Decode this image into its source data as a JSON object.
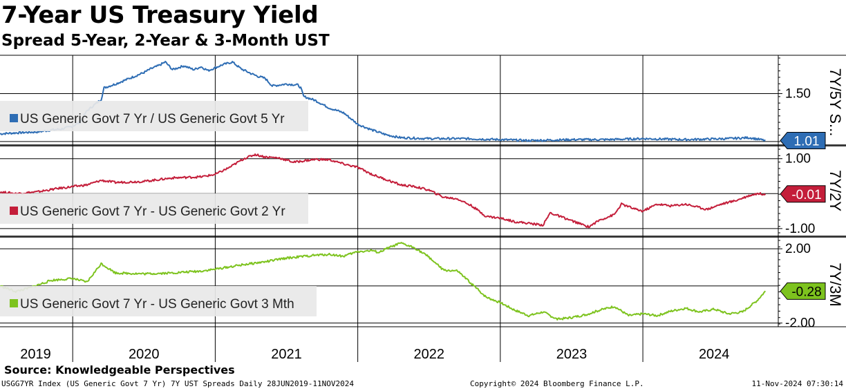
{
  "header": {
    "title": "7-Year US Treasury Yield",
    "subtitle": "Spread 5-Year, 2-Year & 3-Month UST"
  },
  "footer": {
    "source": "Source: Knowledgeable Perspectives",
    "ticker_info": "USGG7YR Index (US Generic Govt 7 Yr) 7Y UST Spreads  Daily 28JUN2019-11NOV2024",
    "copyright": "Copyright© 2024 Bloomberg Finance L.P.",
    "timestamp": "11-Nov-2024 07:30:14"
  },
  "chart_data": {
    "type": "line",
    "x_labels": [
      "2019",
      "2020",
      "2021",
      "2022",
      "2023",
      "2024"
    ],
    "x_range": [
      "2019-06-28",
      "2024-11-11"
    ],
    "panels": [
      {
        "name": "7Y/5Y Spread",
        "axis_title": "7Y/5Y S...",
        "legend": "US Generic Govt 7 Yr / US Generic Govt 5 Yr",
        "color": "#2e6db4",
        "last_value_label": "1.01",
        "yticks": [
          1.5
        ],
        "ytick_labels": [
          "1.50"
        ],
        "ylim": [
          0.97,
          1.9
        ],
        "points": [
          [
            2019.49,
            1.08
          ],
          [
            2019.6,
            1.09
          ],
          [
            2019.75,
            1.1
          ],
          [
            2019.85,
            1.12
          ],
          [
            2019.92,
            1.13
          ],
          [
            2020.0,
            1.16
          ],
          [
            2020.05,
            1.2
          ],
          [
            2020.1,
            1.32
          ],
          [
            2020.15,
            1.38
          ],
          [
            2020.2,
            1.44
          ],
          [
            2020.22,
            1.56
          ],
          [
            2020.3,
            1.6
          ],
          [
            2020.4,
            1.66
          ],
          [
            2020.5,
            1.72
          ],
          [
            2020.55,
            1.76
          ],
          [
            2020.6,
            1.79
          ],
          [
            2020.65,
            1.83
          ],
          [
            2020.7,
            1.75
          ],
          [
            2020.78,
            1.79
          ],
          [
            2020.85,
            1.75
          ],
          [
            2020.9,
            1.78
          ],
          [
            2020.95,
            1.74
          ],
          [
            2021.0,
            1.77
          ],
          [
            2021.05,
            1.8
          ],
          [
            2021.12,
            1.83
          ],
          [
            2021.18,
            1.76
          ],
          [
            2021.25,
            1.71
          ],
          [
            2021.3,
            1.68
          ],
          [
            2021.35,
            1.66
          ],
          [
            2021.4,
            1.58
          ],
          [
            2021.5,
            1.6
          ],
          [
            2021.58,
            1.59
          ],
          [
            2021.6,
            1.56
          ],
          [
            2021.62,
            1.47
          ],
          [
            2021.7,
            1.43
          ],
          [
            2021.8,
            1.35
          ],
          [
            2021.9,
            1.3
          ],
          [
            2022.0,
            1.18
          ],
          [
            2022.1,
            1.12
          ],
          [
            2022.2,
            1.07
          ],
          [
            2022.3,
            1.04
          ],
          [
            2022.5,
            1.03
          ],
          [
            2022.75,
            1.03
          ],
          [
            2023.0,
            1.02
          ],
          [
            2023.2,
            1.01
          ],
          [
            2023.5,
            1.02
          ],
          [
            2023.75,
            1.02
          ],
          [
            2024.0,
            1.03
          ],
          [
            2024.3,
            1.02
          ],
          [
            2024.6,
            1.03
          ],
          [
            2024.75,
            1.04
          ],
          [
            2024.86,
            1.01
          ]
        ]
      },
      {
        "name": "7Y/2Y Spread",
        "axis_title": "7Y/2Y",
        "legend": "US Generic Govt 7 Yr - US Generic Govt 2 Yr",
        "color": "#c41e3a",
        "last_value_label": "-0.01",
        "yticks": [
          1.0,
          -1.0
        ],
        "ytick_labels": [
          "1.00",
          "-1.00"
        ],
        "ylim": [
          -1.2,
          1.35
        ],
        "points": [
          [
            2019.49,
            0.05
          ],
          [
            2019.6,
            0.0
          ],
          [
            2019.75,
            0.05
          ],
          [
            2019.9,
            0.15
          ],
          [
            2020.0,
            0.2
          ],
          [
            2020.1,
            0.25
          ],
          [
            2020.2,
            0.38
          ],
          [
            2020.3,
            0.32
          ],
          [
            2020.5,
            0.35
          ],
          [
            2020.7,
            0.45
          ],
          [
            2020.9,
            0.48
          ],
          [
            2021.0,
            0.55
          ],
          [
            2021.1,
            0.75
          ],
          [
            2021.2,
            1.0
          ],
          [
            2021.28,
            1.12
          ],
          [
            2021.35,
            1.05
          ],
          [
            2021.45,
            1.02
          ],
          [
            2021.55,
            0.9
          ],
          [
            2021.7,
            0.98
          ],
          [
            2021.8,
            0.97
          ],
          [
            2021.9,
            0.85
          ],
          [
            2022.0,
            0.75
          ],
          [
            2022.1,
            0.55
          ],
          [
            2022.2,
            0.4
          ],
          [
            2022.3,
            0.25
          ],
          [
            2022.4,
            0.2
          ],
          [
            2022.5,
            0.1
          ],
          [
            2022.6,
            -0.1
          ],
          [
            2022.7,
            -0.15
          ],
          [
            2022.8,
            -0.35
          ],
          [
            2022.9,
            -0.65
          ],
          [
            2023.0,
            -0.7
          ],
          [
            2023.1,
            -0.8
          ],
          [
            2023.2,
            -0.85
          ],
          [
            2023.3,
            -0.9
          ],
          [
            2023.35,
            -0.55
          ],
          [
            2023.45,
            -0.7
          ],
          [
            2023.55,
            -0.85
          ],
          [
            2023.62,
            -0.95
          ],
          [
            2023.7,
            -0.75
          ],
          [
            2023.8,
            -0.6
          ],
          [
            2023.85,
            -0.3
          ],
          [
            2023.95,
            -0.45
          ],
          [
            2024.0,
            -0.5
          ],
          [
            2024.1,
            -0.3
          ],
          [
            2024.2,
            -0.35
          ],
          [
            2024.3,
            -0.3
          ],
          [
            2024.45,
            -0.45
          ],
          [
            2024.55,
            -0.3
          ],
          [
            2024.65,
            -0.2
          ],
          [
            2024.75,
            -0.05
          ],
          [
            2024.8,
            0.0
          ],
          [
            2024.86,
            -0.01
          ]
        ]
      },
      {
        "name": "7Y/3M Spread",
        "axis_title": "7Y/3M",
        "legend": "US Generic Govt 7 Yr - US Generic Govt 3 Mth",
        "color": "#7dc31e",
        "last_value_label": "-0.28",
        "yticks": [
          2.0,
          -2.0
        ],
        "ytick_labels": [
          "2.00",
          "-2.00"
        ],
        "ylim": [
          -2.2,
          2.6
        ],
        "points": [
          [
            2019.49,
            0.0
          ],
          [
            2019.6,
            -0.3
          ],
          [
            2019.7,
            -0.1
          ],
          [
            2019.85,
            0.3
          ],
          [
            2020.0,
            0.4
          ],
          [
            2020.1,
            0.2
          ],
          [
            2020.2,
            1.2
          ],
          [
            2020.3,
            0.7
          ],
          [
            2020.5,
            0.65
          ],
          [
            2020.7,
            0.7
          ],
          [
            2020.9,
            0.8
          ],
          [
            2021.0,
            0.9
          ],
          [
            2021.2,
            1.15
          ],
          [
            2021.35,
            1.3
          ],
          [
            2021.5,
            1.5
          ],
          [
            2021.7,
            1.65
          ],
          [
            2021.8,
            1.7
          ],
          [
            2021.9,
            1.6
          ],
          [
            2022.0,
            1.85
          ],
          [
            2022.1,
            1.9
          ],
          [
            2022.15,
            1.8
          ],
          [
            2022.2,
            2.0
          ],
          [
            2022.3,
            2.3
          ],
          [
            2022.4,
            2.05
          ],
          [
            2022.5,
            1.55
          ],
          [
            2022.6,
            0.85
          ],
          [
            2022.7,
            0.8
          ],
          [
            2022.8,
            0.1
          ],
          [
            2022.9,
            -0.6
          ],
          [
            2023.0,
            -0.9
          ],
          [
            2023.1,
            -1.3
          ],
          [
            2023.2,
            -1.6
          ],
          [
            2023.3,
            -1.4
          ],
          [
            2023.4,
            -1.8
          ],
          [
            2023.5,
            -1.7
          ],
          [
            2023.6,
            -1.55
          ],
          [
            2023.7,
            -1.3
          ],
          [
            2023.8,
            -1.1
          ],
          [
            2023.9,
            -1.6
          ],
          [
            2024.0,
            -1.5
          ],
          [
            2024.1,
            -1.6
          ],
          [
            2024.2,
            -1.35
          ],
          [
            2024.3,
            -1.2
          ],
          [
            2024.4,
            -1.4
          ],
          [
            2024.5,
            -1.25
          ],
          [
            2024.6,
            -1.5
          ],
          [
            2024.7,
            -1.4
          ],
          [
            2024.75,
            -1.1
          ],
          [
            2024.8,
            -0.8
          ],
          [
            2024.86,
            -0.28
          ]
        ]
      }
    ]
  }
}
